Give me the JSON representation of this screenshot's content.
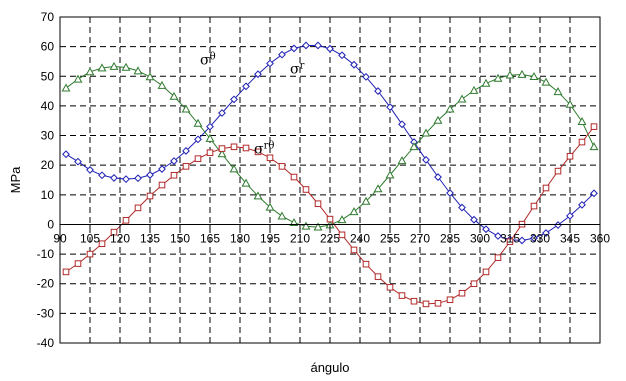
{
  "chart_data": {
    "type": "line",
    "title": "",
    "xlabel": "ángulo",
    "ylabel": "MPa",
    "xlim": [
      90,
      360
    ],
    "ylim": [
      -40,
      70
    ],
    "xticks": [
      90,
      105,
      120,
      135,
      150,
      165,
      180,
      195,
      210,
      225,
      240,
      255,
      270,
      285,
      300,
      315,
      330,
      345,
      360
    ],
    "yticks": [
      -40,
      -30,
      -20,
      -10,
      0,
      10,
      20,
      30,
      40,
      50,
      60,
      70
    ],
    "grid": true,
    "legend": "none",
    "series": [
      {
        "symbol": "σ",
        "sup": "r",
        "color": "#1f1fb4",
        "marker": "diamond",
        "x": [
          93,
          99,
          105,
          111,
          117,
          123,
          129,
          135,
          141,
          147,
          153,
          159,
          165,
          171,
          177,
          183,
          189,
          195,
          201,
          207,
          213,
          219,
          225,
          231,
          237,
          243,
          249,
          255,
          261,
          267,
          273,
          279,
          285,
          291,
          297,
          303,
          309,
          315,
          321,
          327,
          333,
          339,
          345,
          351,
          357
        ],
        "y": [
          23.7,
          21.2,
          18.4,
          16.6,
          15.7,
          15.3,
          15.6,
          16.7,
          18.7,
          21.4,
          24.8,
          28.7,
          33,
          37.6,
          42.2,
          46.6,
          50.7,
          54.3,
          57.3,
          59.4,
          60.4,
          60.4,
          59.3,
          57.1,
          53.9,
          49.8,
          45,
          39.6,
          33.8,
          27.8,
          21.8,
          16,
          10.6,
          5.7,
          1.6,
          -1.6,
          -3.9,
          -5.1,
          -5.4,
          -4.6,
          -2.9,
          -0.2,
          2.9,
          6.6,
          10.5
        ]
      },
      {
        "symbol": "σ",
        "sup": "θ",
        "color": "#2f7a2f",
        "marker": "triangle",
        "x": [
          93,
          99,
          105,
          111,
          117,
          123,
          129,
          135,
          141,
          147,
          153,
          159,
          165,
          171,
          177,
          183,
          189,
          195,
          201,
          207,
          213,
          219,
          225,
          231,
          237,
          243,
          249,
          255,
          261,
          267,
          273,
          279,
          285,
          291,
          297,
          303,
          309,
          315,
          321,
          327,
          333,
          339,
          345,
          351,
          357
        ],
        "y": [
          46,
          49,
          51.5,
          52.8,
          53.3,
          53,
          51.8,
          49.8,
          46.9,
          43.2,
          38.9,
          34.1,
          29,
          23.8,
          18.7,
          13.9,
          9.6,
          5.8,
          2.8,
          0.6,
          -0.6,
          -0.9,
          -0.2,
          1.6,
          4.3,
          7.8,
          12,
          16.7,
          21.5,
          26.2,
          30.8,
          35.1,
          38.9,
          42.3,
          45.2,
          47.6,
          49.3,
          50.4,
          50.6,
          49.9,
          48,
          44.8,
          40.5,
          34.7,
          26.2
        ]
      },
      {
        "symbol": "σ",
        "sup": "rθ",
        "color": "#b22a2a",
        "marker": "square",
        "x": [
          93,
          99,
          105,
          111,
          117,
          123,
          129,
          135,
          141,
          147,
          153,
          159,
          165,
          171,
          177,
          183,
          189,
          195,
          201,
          207,
          213,
          219,
          225,
          231,
          237,
          243,
          249,
          255,
          261,
          267,
          273,
          279,
          285,
          291,
          297,
          303,
          309,
          315,
          321,
          327,
          333,
          339,
          345,
          351,
          357
        ],
        "y": [
          -16,
          -13.2,
          -10,
          -6.5,
          -2.6,
          1.4,
          5.6,
          9.6,
          13.3,
          16.6,
          19.6,
          22.2,
          24.2,
          25.6,
          26.2,
          25.8,
          24.5,
          22.5,
          19.6,
          16,
          11.8,
          7,
          1.8,
          -3.5,
          -8.6,
          -13.4,
          -17.6,
          -21.2,
          -24,
          -25.9,
          -26.8,
          -26.6,
          -25.4,
          -23.2,
          -20,
          -16,
          -11.2,
          -5.8,
          0.1,
          6.2,
          12.3,
          18,
          23,
          27.8,
          33
        ]
      }
    ],
    "annotations": [
      {
        "symbol": "σ",
        "sup": "θ",
        "x": 160,
        "y": 54
      },
      {
        "symbol": "σ",
        "sup": "r",
        "x": 205,
        "y": 51
      },
      {
        "symbol": "σ",
        "sup": "rθ",
        "x": 187,
        "y": 24
      }
    ]
  }
}
